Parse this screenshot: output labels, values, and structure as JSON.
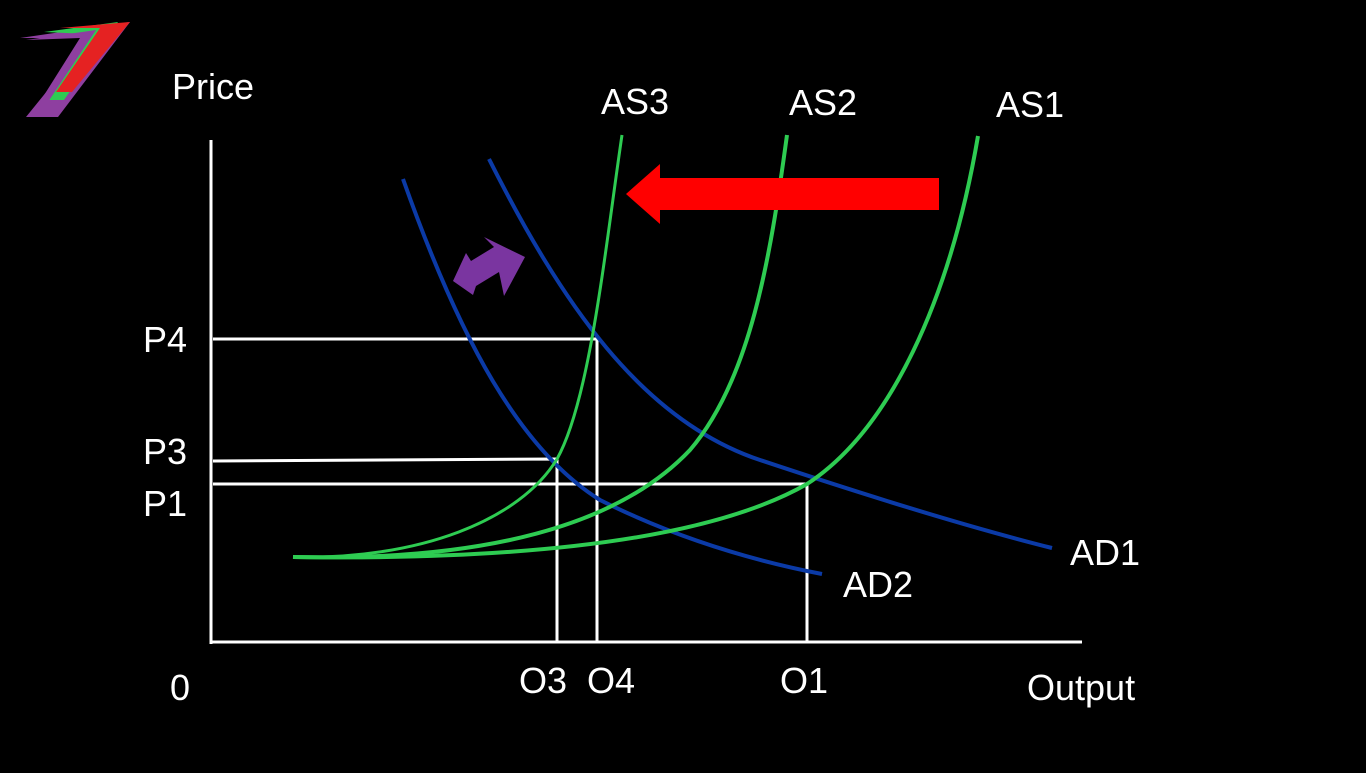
{
  "diagram": {
    "axes": {
      "y_label": "Price",
      "x_label": "Output",
      "origin_label": "0"
    },
    "price_levels": [
      "P4",
      "P3",
      "P1"
    ],
    "output_levels": [
      "O3",
      "O4",
      "O1"
    ],
    "supply_curves": [
      "AS3",
      "AS2",
      "AS1"
    ],
    "demand_curves": [
      "AD1",
      "AD2"
    ],
    "shifts": {
      "supply_direction": "left",
      "demand_direction": "both"
    },
    "colors": {
      "background": "#000000",
      "axes": "#ffffff",
      "supply": "#2ecc52",
      "demand": "#0b3aa6",
      "arrow": "#ff0000",
      "double_arrow": "#7a35a0"
    }
  }
}
